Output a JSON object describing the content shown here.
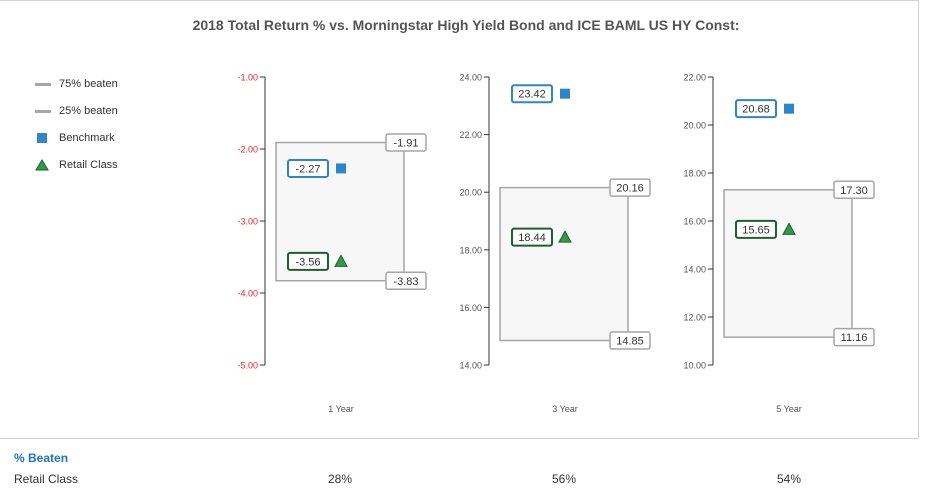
{
  "chart_data": {
    "type": "box",
    "title": "2018 Total Return % vs. Morningstar High Yield Bond and ICE BAML US HY Const:",
    "legend": {
      "placement": "left",
      "items": [
        {
          "label": "75% beaten",
          "symbol": "line",
          "color": "#a6a6a6"
        },
        {
          "label": "25% beaten",
          "symbol": "line",
          "color": "#a6a6a6"
        },
        {
          "label": "Benchmark",
          "symbol": "square",
          "color": "#2e86c8"
        },
        {
          "label": "Retail Class",
          "symbol": "triangle",
          "color": "#2f9a48"
        }
      ]
    },
    "panels": [
      {
        "category": "1 Year",
        "ylim": [
          -5.0,
          -1.0
        ],
        "ticks": [
          "-1.00",
          "-2.00",
          "-3.00",
          "-4.00",
          "-5.00"
        ],
        "tick_color": "#e8262a",
        "q75": -1.91,
        "q75_label": "-1.91",
        "q25": -3.83,
        "q25_label": "-3.83",
        "benchmark": -2.27,
        "benchmark_label": "-2.27",
        "retail": -3.56,
        "retail_label": "-3.56"
      },
      {
        "category": "3 Year",
        "ylim": [
          14.0,
          24.0
        ],
        "ticks": [
          "24.00",
          "22.00",
          "20.00",
          "18.00",
          "16.00",
          "14.00"
        ],
        "tick_color": "#555555",
        "q75": 20.16,
        "q75_label": "20.16",
        "q25": 14.85,
        "q25_label": "14.85",
        "benchmark": 23.42,
        "benchmark_label": "23.42",
        "retail": 18.44,
        "retail_label": "18.44"
      },
      {
        "category": "5 Year",
        "ylim": [
          10.0,
          22.0
        ],
        "ticks": [
          "22.00",
          "20.00",
          "18.00",
          "16.00",
          "14.00",
          "12.00",
          "10.00"
        ],
        "tick_color": "#555555",
        "q75": 17.3,
        "q75_label": "17.30",
        "q25": 11.16,
        "q25_label": "11.16",
        "benchmark": 20.68,
        "benchmark_label": "20.68",
        "retail": 15.65,
        "retail_label": "15.65"
      }
    ],
    "colors": {
      "box_stroke": "#a6a6a6",
      "box_fill": "#f7f7f7",
      "benchmark": "#2e86c8",
      "retail": "#2f9a48",
      "retail_label_border": "#1e5f2e",
      "benchmark_label_border": "#2e86c8"
    }
  },
  "percent_beaten": {
    "heading": "% Beaten",
    "row_label": "Retail Class",
    "values": [
      "28%",
      "56%",
      "54%"
    ]
  }
}
